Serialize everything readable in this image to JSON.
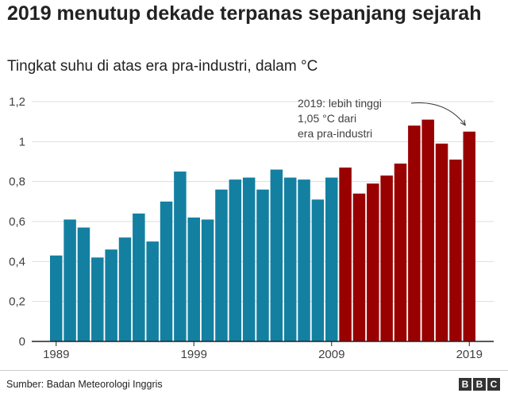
{
  "title": "2019 menutup dekade terpanas sepanjang sejarah",
  "subtitle": "Tingkat suhu di atas era pra-industri, dalam °C",
  "source": "Sumber: Badan Meteorologi Inggris",
  "logo_letters": [
    "B",
    "B",
    "C"
  ],
  "colors": {
    "early": "#1380a1",
    "recent": "#990000",
    "grid": "#dddddd",
    "baseline": "#222222",
    "text": "#222222"
  },
  "chart_data": {
    "type": "bar",
    "x": [
      1989,
      1990,
      1991,
      1992,
      1993,
      1994,
      1995,
      1996,
      1997,
      1998,
      1999,
      2000,
      2001,
      2002,
      2003,
      2004,
      2005,
      2006,
      2007,
      2008,
      2009,
      2010,
      2011,
      2012,
      2013,
      2014,
      2015,
      2016,
      2017,
      2018,
      2019
    ],
    "values": [
      0.43,
      0.61,
      0.57,
      0.42,
      0.46,
      0.52,
      0.64,
      0.5,
      0.7,
      0.85,
      0.62,
      0.61,
      0.76,
      0.81,
      0.82,
      0.76,
      0.86,
      0.82,
      0.81,
      0.71,
      0.82,
      0.87,
      0.74,
      0.79,
      0.83,
      0.89,
      1.08,
      1.11,
      0.99,
      0.91,
      1.05
    ],
    "highlight_from": 2010,
    "title": "2019 menutup dekade terpanas sepanjang sejarah",
    "ylabel": "Tingkat suhu di atas era pra-industri, dalam °C",
    "ylim": [
      0,
      1.2
    ],
    "yticks": [
      0,
      0.2,
      0.4,
      0.6,
      0.8,
      1,
      1.2
    ],
    "ytick_labels": [
      "0",
      "0,2",
      "0,4",
      "0,6",
      "0,8",
      "1",
      "1,2"
    ],
    "xticks": [
      1989,
      1999,
      2009,
      2019
    ],
    "xtick_labels": [
      "1989",
      "1999",
      "2009",
      "2019"
    ],
    "grid": true,
    "annotation": {
      "lines": [
        "2019: lebih tinggi",
        "1,05 °C dari",
        "era pra-industri"
      ],
      "target_x": 2019
    }
  }
}
